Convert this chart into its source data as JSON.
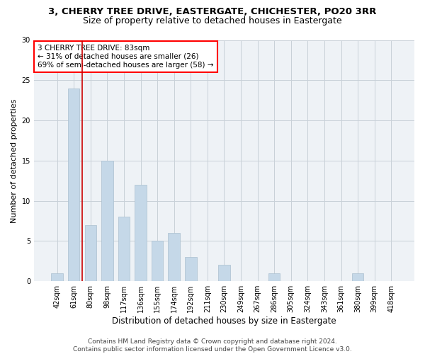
{
  "title": "3, CHERRY TREE DRIVE, EASTERGATE, CHICHESTER, PO20 3RR",
  "subtitle": "Size of property relative to detached houses in Eastergate",
  "xlabel": "Distribution of detached houses by size in Eastergate",
  "ylabel": "Number of detached properties",
  "bar_labels": [
    "42sqm",
    "61sqm",
    "80sqm",
    "98sqm",
    "117sqm",
    "136sqm",
    "155sqm",
    "174sqm",
    "192sqm",
    "211sqm",
    "230sqm",
    "249sqm",
    "267sqm",
    "286sqm",
    "305sqm",
    "324sqm",
    "343sqm",
    "361sqm",
    "380sqm",
    "399sqm",
    "418sqm"
  ],
  "bar_values": [
    1,
    24,
    7,
    15,
    8,
    12,
    5,
    6,
    3,
    0,
    2,
    0,
    0,
    1,
    0,
    0,
    0,
    0,
    1,
    0,
    0
  ],
  "bar_color": "#c5d8e8",
  "bar_edgecolor": "#aabfcf",
  "annotation_box_text": "3 CHERRY TREE DRIVE: 83sqm\n← 31% of detached houses are smaller (26)\n69% of semi-detached houses are larger (58) →",
  "vline_color": "#cc0000",
  "vline_x_index": 2,
  "ylim": [
    0,
    30
  ],
  "yticks": [
    0,
    5,
    10,
    15,
    20,
    25,
    30
  ],
  "grid_color": "#c8d0d8",
  "background_color": "#eef2f6",
  "footer_line1": "Contains HM Land Registry data © Crown copyright and database right 2024.",
  "footer_line2": "Contains public sector information licensed under the Open Government Licence v3.0.",
  "title_fontsize": 9.5,
  "subtitle_fontsize": 9,
  "xlabel_fontsize": 8.5,
  "ylabel_fontsize": 8,
  "tick_fontsize": 7,
  "footer_fontsize": 6.5,
  "annot_fontsize": 7.5
}
